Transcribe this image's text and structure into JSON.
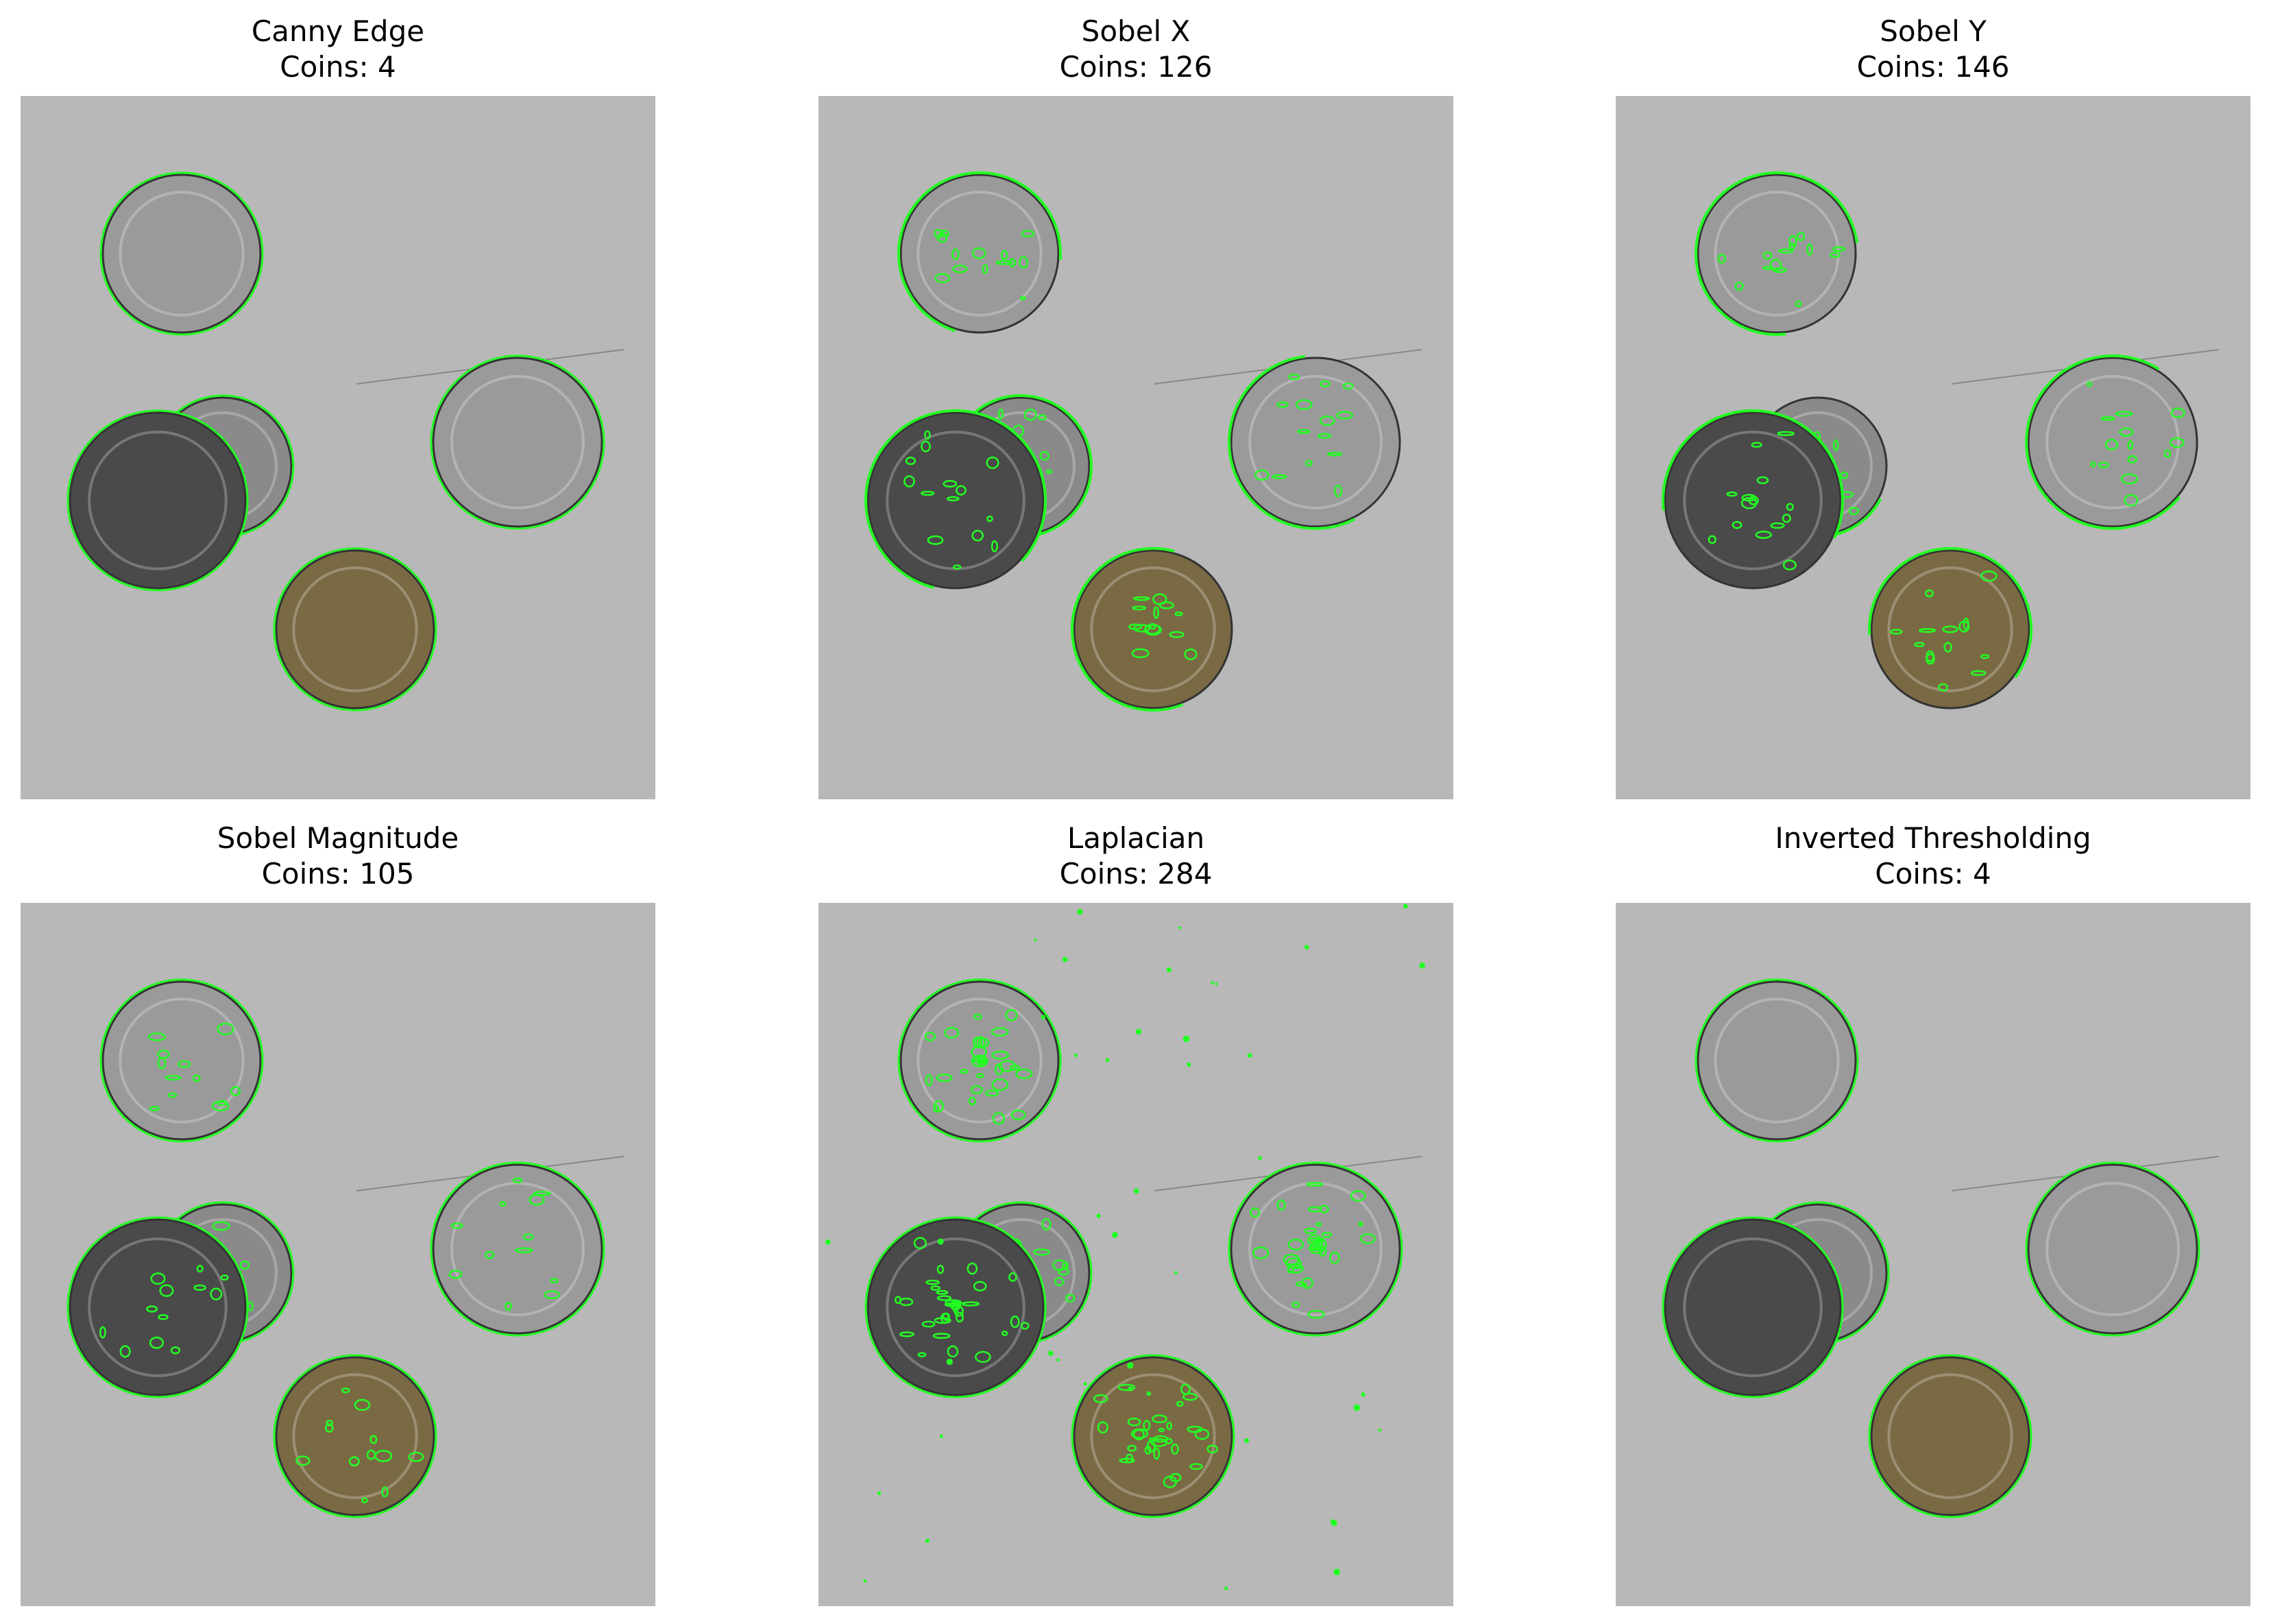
{
  "panels": [
    {
      "title": "Canny Edge",
      "coins": "Coins: 4",
      "style": "clean"
    },
    {
      "title": "Sobel X",
      "coins": "Coins: 126",
      "style": "partial"
    },
    {
      "title": "Sobel Y",
      "coins": "Coins: 146",
      "style": "partial"
    },
    {
      "title": "Sobel Magnitude",
      "coins": "Coins: 105",
      "style": "noisy"
    },
    {
      "title": "Laplacian",
      "coins": "Coins: 284",
      "style": "verynoisy"
    },
    {
      "title": "Inverted Thresholding",
      "coins": "Coins: 4",
      "style": "clean"
    }
  ],
  "colors": {
    "background": "#b8b8b8",
    "contour": "#22ff22",
    "silver_coin": "#9a9a9a",
    "dark_coin": "#4a4a4a",
    "bronze_coin": "#7a6a44"
  }
}
